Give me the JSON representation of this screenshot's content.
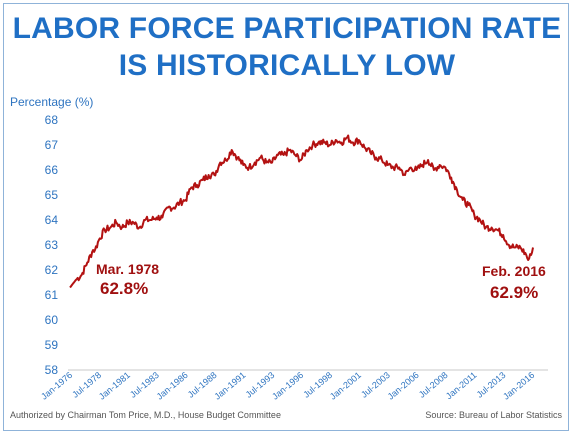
{
  "chart_data": {
    "type": "line",
    "title": "LABOR FORCE PARTICIPATION RATE IS HISTORICALLY LOW",
    "ylabel": "Percentage (%)",
    "xlabel": "",
    "ylim": [
      58,
      68
    ],
    "yticks": [
      58,
      59,
      60,
      61,
      62,
      63,
      64,
      65,
      66,
      67,
      68
    ],
    "grid": false,
    "x_tick_labels": [
      "Jan-1976",
      "Jul-1978",
      "Jan-1981",
      "Jul-1983",
      "Jan-1986",
      "Jul-1988",
      "Jan-1991",
      "Jul-1993",
      "Jan-1996",
      "Jul-1998",
      "Jan-2001",
      "Jul-2003",
      "Jan-2006",
      "Jul-2008",
      "Jan-2011",
      "Jul-2013",
      "Jan-2016"
    ],
    "series": [
      {
        "color": "#b31212",
        "points": [
          [
            "1976-01",
            61.3
          ],
          [
            "1976-07",
            61.6
          ],
          [
            "1977-01",
            61.8
          ],
          [
            "1977-07",
            62.3
          ],
          [
            "1978-01",
            62.8
          ],
          [
            "1978-03",
            62.8
          ],
          [
            "1978-07",
            63.2
          ],
          [
            "1979-01",
            63.6
          ],
          [
            "1979-07",
            63.7
          ],
          [
            "1980-01",
            63.9
          ],
          [
            "1980-07",
            63.7
          ],
          [
            "1981-01",
            63.9
          ],
          [
            "1981-07",
            63.9
          ],
          [
            "1982-01",
            63.7
          ],
          [
            "1982-07",
            64.0
          ],
          [
            "1983-01",
            64.0
          ],
          [
            "1983-07",
            64.1
          ],
          [
            "1984-01",
            64.1
          ],
          [
            "1984-07",
            64.5
          ],
          [
            "1985-01",
            64.5
          ],
          [
            "1985-07",
            64.7
          ],
          [
            "1986-01",
            64.8
          ],
          [
            "1986-07",
            65.3
          ],
          [
            "1987-01",
            65.4
          ],
          [
            "1987-07",
            65.6
          ],
          [
            "1988-01",
            65.8
          ],
          [
            "1988-07",
            65.8
          ],
          [
            "1989-01",
            66.3
          ],
          [
            "1989-07",
            66.4
          ],
          [
            "1990-01",
            66.8
          ],
          [
            "1990-07",
            66.5
          ],
          [
            "1991-01",
            66.2
          ],
          [
            "1991-07",
            66.1
          ],
          [
            "1992-01",
            66.3
          ],
          [
            "1992-07",
            66.5
          ],
          [
            "1993-01",
            66.3
          ],
          [
            "1993-07",
            66.3
          ],
          [
            "1994-01",
            66.6
          ],
          [
            "1994-07",
            66.6
          ],
          [
            "1995-01",
            66.8
          ],
          [
            "1995-07",
            66.6
          ],
          [
            "1996-01",
            66.4
          ],
          [
            "1996-07",
            66.8
          ],
          [
            "1997-01",
            67.0
          ],
          [
            "1997-07",
            67.1
          ],
          [
            "1998-01",
            67.1
          ],
          [
            "1998-07",
            67.0
          ],
          [
            "1999-01",
            67.2
          ],
          [
            "1999-07",
            67.1
          ],
          [
            "2000-01",
            67.3
          ],
          [
            "2000-07",
            67.1
          ],
          [
            "2001-01",
            67.2
          ],
          [
            "2001-07",
            66.9
          ],
          [
            "2002-01",
            66.7
          ],
          [
            "2002-07",
            66.5
          ],
          [
            "2003-01",
            66.4
          ],
          [
            "2003-07",
            66.2
          ],
          [
            "2004-01",
            66.1
          ],
          [
            "2004-07",
            66.1
          ],
          [
            "2005-01",
            65.8
          ],
          [
            "2005-07",
            66.1
          ],
          [
            "2006-01",
            66.0
          ],
          [
            "2006-07",
            66.2
          ],
          [
            "2007-01",
            66.4
          ],
          [
            "2007-07",
            66.0
          ],
          [
            "2008-01",
            66.2
          ],
          [
            "2008-07",
            66.1
          ],
          [
            "2009-01",
            65.7
          ],
          [
            "2009-07",
            65.2
          ],
          [
            "2010-01",
            64.8
          ],
          [
            "2010-07",
            64.6
          ],
          [
            "2011-01",
            64.2
          ],
          [
            "2011-07",
            64.0
          ],
          [
            "2012-01",
            63.7
          ],
          [
            "2012-07",
            63.7
          ],
          [
            "2013-01",
            63.6
          ],
          [
            "2013-07",
            63.4
          ],
          [
            "2014-01",
            63.0
          ],
          [
            "2014-07",
            62.9
          ],
          [
            "2015-01",
            62.9
          ],
          [
            "2015-07",
            62.6
          ],
          [
            "2015-09",
            62.4
          ],
          [
            "2015-12",
            62.6
          ],
          [
            "2016-01",
            62.7
          ],
          [
            "2016-02",
            62.9
          ]
        ]
      }
    ],
    "annotations": [
      {
        "date_label": "Mar. 1978",
        "value_label": "62.8%"
      },
      {
        "date_label": "Feb. 2016",
        "value_label": "62.9%"
      }
    ],
    "footer_left": "Authorized by Chairman Tom Price, M.D., House Budget Committee",
    "footer_right": "Source: Bureau of Labor Statistics"
  }
}
